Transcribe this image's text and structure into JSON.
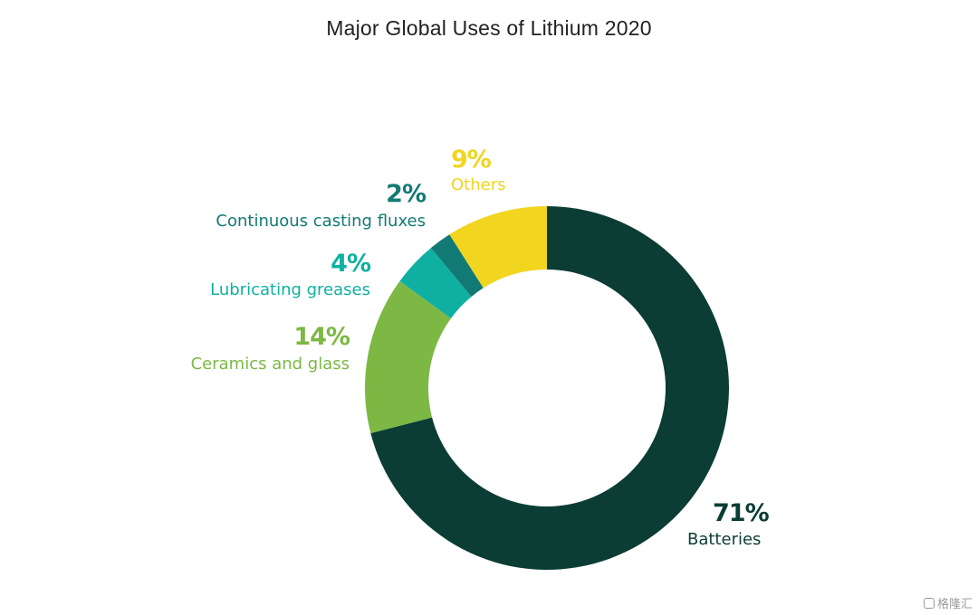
{
  "chart_data": {
    "type": "pie",
    "variant": "donut",
    "title": "Major Global Uses of Lithium 2020",
    "unit": "%",
    "slices": [
      {
        "name": "Batteries",
        "value": 71,
        "label": "71%",
        "color": "#0b3d35"
      },
      {
        "name": "Ceramics and glass",
        "value": 14,
        "label": "14%",
        "color": "#7cb843"
      },
      {
        "name": "Lubricating greases",
        "value": 4,
        "label": "4%",
        "color": "#0fb0a2"
      },
      {
        "name": "Continuous casting fluxes",
        "value": 2,
        "label": "2%",
        "color": "#127a74"
      },
      {
        "name": "Others",
        "value": 9,
        "label": "9%",
        "color": "#f1d51e"
      }
    ]
  },
  "watermark": {
    "text": "格隆汇",
    "icon": "watermark-logo-icon"
  }
}
